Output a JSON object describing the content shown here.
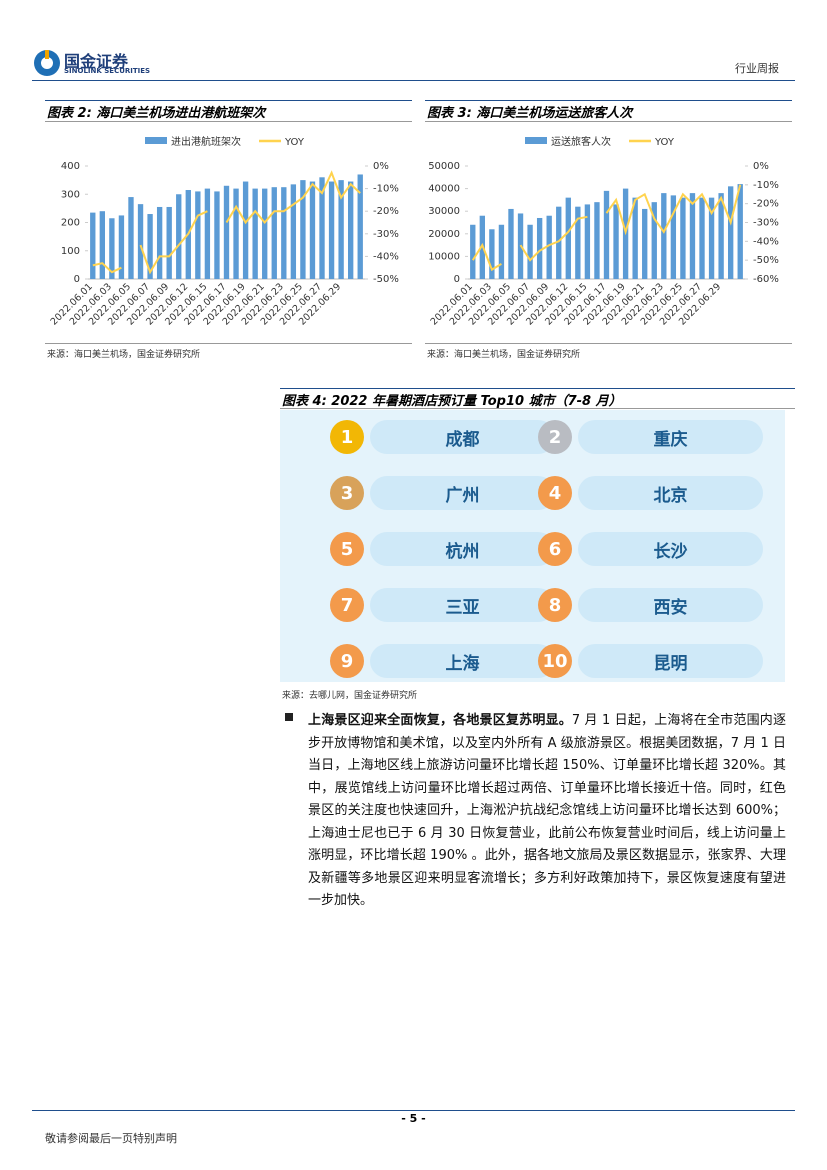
{
  "header": {
    "logo": "国金证券",
    "logo_en": "SINOLINK SECURITIES",
    "report_type": "行业周报"
  },
  "chart_data": [
    {
      "type": "bar",
      "title": "图表 2:  海口美兰机场进出港航班架次",
      "categories": [
        "2022.06.01",
        null,
        "2022.06.03",
        null,
        "2022.06.05",
        null,
        "2022.06.07",
        null,
        "2022.06.09",
        null,
        "2022.06.12",
        null,
        "2022.06.15",
        null,
        "2022.06.17",
        null,
        "2022.06.19",
        null,
        "2022.06.21",
        null,
        "2022.06.23",
        null,
        "2022.06.25",
        null,
        "2022.06.27",
        null,
        "2022.06.29",
        null,
        null
      ],
      "series": [
        {
          "name": "进出港航班架次",
          "color": "#5b9bd5",
          "values": [
            235,
            240,
            215,
            225,
            290,
            265,
            230,
            255,
            255,
            300,
            315,
            310,
            320,
            310,
            330,
            320,
            345,
            320,
            320,
            325,
            325,
            335,
            350,
            345,
            360,
            345,
            350,
            345,
            370
          ]
        },
        {
          "name": "YOY",
          "color": "#ffd34e",
          "axis": "y2",
          "values": [
            -44,
            -43,
            -47,
            -45,
            null,
            -35,
            -47,
            -40,
            -40,
            -35,
            -30,
            -22,
            -20,
            null,
            -25,
            -18,
            -25,
            -20,
            -25,
            -20,
            -20,
            -17,
            -14,
            -8,
            -12,
            -3,
            -14,
            -8,
            -12
          ]
        }
      ],
      "ylim": [
        0,
        400
      ],
      "yticks": [
        0,
        100,
        200,
        300,
        400
      ],
      "y2lim": [
        -50,
        0
      ],
      "y2ticks": [
        {
          "value": 0,
          "label": "0%"
        },
        {
          "value": -10,
          "label": "-10%"
        },
        {
          "value": -20,
          "label": "-20%"
        },
        {
          "value": -30,
          "label": "-30%"
        },
        {
          "value": -40,
          "label": "-40%"
        },
        {
          "value": -50,
          "label": "-50%"
        }
      ],
      "source": "来源：海口美兰机场，国金证券研究所"
    },
    {
      "type": "bar",
      "title": "图表 3:  海口美兰机场运送旅客人次",
      "categories": [
        "2022.06.01",
        null,
        "2022.06.03",
        null,
        "2022.06.05",
        null,
        "2022.06.07",
        null,
        "2022.06.09",
        null,
        "2022.06.12",
        null,
        "2022.06.15",
        null,
        "2022.06.17",
        null,
        "2022.06.19",
        null,
        "2022.06.21",
        null,
        "2022.06.23",
        null,
        "2022.06.25",
        null,
        "2022.06.27",
        null,
        "2022.06.29",
        null,
        null
      ],
      "series": [
        {
          "name": "运送旅客人次",
          "color": "#5b9bd5",
          "values": [
            24000,
            28000,
            22000,
            24000,
            31000,
            29000,
            24000,
            27000,
            28000,
            32000,
            36000,
            32000,
            33000,
            34000,
            39000,
            33000,
            40000,
            36000,
            31000,
            34000,
            38000,
            37000,
            36000,
            38000,
            36000,
            36000,
            38000,
            41000,
            42000
          ]
        },
        {
          "name": "YOY",
          "color": "#ffd34e",
          "axis": "y2",
          "values": [
            -50,
            -42,
            -55,
            -52,
            null,
            -42,
            -50,
            -45,
            -42,
            -40,
            -35,
            -28,
            -27,
            null,
            -25,
            -18,
            -35,
            -18,
            -15,
            -28,
            -35,
            -25,
            -15,
            -20,
            -15,
            -25,
            -17,
            -30,
            -10
          ]
        }
      ],
      "ylim": [
        0,
        50000
      ],
      "yticks": [
        0,
        10000,
        20000,
        30000,
        40000,
        50000
      ],
      "y2lim": [
        -60,
        0
      ],
      "y2ticks": [
        {
          "value": 0,
          "label": "0%"
        },
        {
          "value": -10,
          "label": "-10%"
        },
        {
          "value": -20,
          "label": "-20%"
        },
        {
          "value": -30,
          "label": "-30%"
        },
        {
          "value": -40,
          "label": "-40%"
        },
        {
          "value": -50,
          "label": "-50%"
        },
        {
          "value": -60,
          "label": "-60%"
        }
      ],
      "source": "来源：海口美兰机场，国金证券研究所"
    }
  ],
  "figure4": {
    "title": "图表 4:  2022 年暑期酒店预订量 Top10 城市（7-8 月）",
    "ranks": [
      {
        "rank": "1",
        "city": "成都"
      },
      {
        "rank": "2",
        "city": "重庆"
      },
      {
        "rank": "3",
        "city": "广州"
      },
      {
        "rank": "4",
        "city": "北京"
      },
      {
        "rank": "5",
        "city": "杭州"
      },
      {
        "rank": "6",
        "city": "长沙"
      },
      {
        "rank": "7",
        "city": "三亚"
      },
      {
        "rank": "8",
        "city": "西安"
      },
      {
        "rank": "9",
        "city": "上海"
      },
      {
        "rank": "10",
        "city": "昆明"
      }
    ],
    "source": "来源：去哪儿网，国金证券研究所"
  },
  "paragraph": {
    "lead": "上海景区迎来全面恢复，各地景区复苏明显。",
    "text": "7 月 1 日起，上海将在全市范围内逐步开放博物馆和美术馆，以及室内外所有 A 级旅游景区。根据美团数据，7 月 1 日当日，上海地区线上旅游访问量环比增长超 150%、订单量环比增长超 320%。其中，展览馆线上访问量环比增长超过两倍、订单量环比增长接近十倍。同时，红色景区的关注度也快速回升，上海淞沪抗战纪念馆线上访问量环比增长达到 600%；上海迪士尼也已于 6 月 30 日恢复营业，此前公布恢复营业时间后，线上访问量上涨明显，环比增长超 190% 。此外，据各地文旅局及景区数据显示，张家界、大理及新疆等多地景区迎来明显客流增长；多方利好政策加持下，景区恢复速度有望进一步加快。"
  },
  "footer": {
    "page": "- 5 -",
    "disclaimer": "敬请参阅最后一页特别声明"
  }
}
